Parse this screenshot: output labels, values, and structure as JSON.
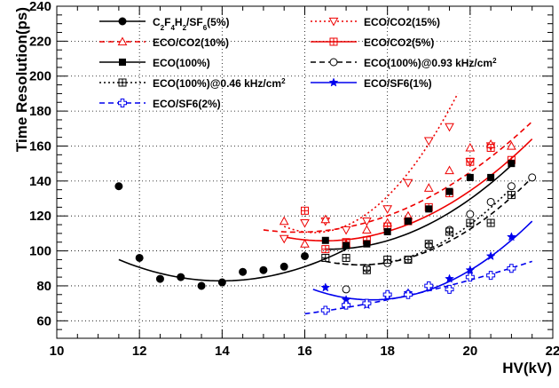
{
  "chart_data": {
    "type": "scatter",
    "xlabel": "HV(kV)",
    "ylabel": "Time Resolution(ps)",
    "xlim": [
      10,
      22
    ],
    "ylim": [
      50,
      240
    ],
    "x_ticks": [
      10,
      12,
      14,
      16,
      18,
      20,
      22
    ],
    "y_ticks": [
      60,
      80,
      100,
      120,
      140,
      160,
      180,
      200,
      220,
      240
    ],
    "grid": true,
    "legend_placement": "top",
    "legend": [
      {
        "series": 0,
        "label_html": "C<tspan baseline-shift=\"sub\" font-size=\"8\">2</tspan>F<tspan baseline-shift=\"sub\" font-size=\"8\">4</tspan>H<tspan baseline-shift=\"sub\" font-size=\"8\">2</tspan>/SF<tspan baseline-shift=\"sub\" font-size=\"8\">6</tspan>(5%)",
        "label_text": "C2F4H2/SF6(5%)"
      },
      {
        "series": 1,
        "label_text": "ECO/CO2(15%)"
      },
      {
        "series": 2,
        "label_text": "ECO/CO2(10%)"
      },
      {
        "series": 3,
        "label_text": "ECO/CO2(5%)"
      },
      {
        "series": 4,
        "label_text": "ECO(100%)"
      },
      {
        "series": 5,
        "label_html": "ECO(100%)@0.93 kHz/cm<tspan baseline-shift=\"super\" font-size=\"8\">2</tspan>",
        "label_text": "ECO(100%)@0.93 kHz/cm2"
      },
      {
        "series": 6,
        "label_html": "ECO(100%)@0.46 kHz/cm<tspan baseline-shift=\"super\" font-size=\"8\">2</tspan>",
        "label_text": "ECO(100%)@0.46 kHz/cm2"
      },
      {
        "series": 7,
        "label_text": "ECO/SF6(1%)"
      },
      {
        "series": 8,
        "label_text": "ECO/SF6(2%)"
      }
    ],
    "series": [
      {
        "name": "C2F4H2/SF6(5%)",
        "color": "#000000",
        "marker": "filled-circle",
        "line": "solid",
        "x": [
          11.5,
          12.0,
          12.5,
          13.0,
          13.5,
          14.0,
          14.5,
          15.0,
          15.5,
          16.0
        ],
        "y": [
          137,
          96,
          84,
          85,
          80,
          82,
          88,
          89,
          91,
          97
        ],
        "fit_x": [
          11.5,
          13.7,
          17.0
        ],
        "fit_y": [
          95,
          83,
          101
        ]
      },
      {
        "name": "ECO/CO2(15%)",
        "color": "#ee0000",
        "marker": "open-triangle-down",
        "line": "dotted",
        "x": [
          15.5,
          16.0,
          16.5,
          17.0,
          17.5,
          18.0,
          18.5,
          19.0,
          19.5,
          20.0,
          20.5
        ],
        "y": [
          107,
          116,
          117,
          112,
          117,
          124,
          139,
          163,
          171,
          151,
          160
        ],
        "fit_x": [
          15.5,
          16.5,
          19.7
        ],
        "fit_y": [
          114,
          111,
          190
        ]
      },
      {
        "name": "ECO/CO2(10%)",
        "color": "#ee0000",
        "marker": "open-triangle-up",
        "line": "dashed",
        "x": [
          15.5,
          16.0,
          16.5,
          17.0,
          17.5,
          18.0,
          18.5,
          19.0,
          19.5,
          20.0,
          20.5,
          21.0
        ],
        "y": [
          117,
          104,
          118,
          104,
          112,
          116,
          120,
          136,
          146,
          159,
          161,
          160
        ],
        "fit_x": [
          15.0,
          16.2,
          21.5
        ],
        "fit_y": [
          112,
          111,
          174
        ]
      },
      {
        "name": "ECO/CO2(5%)",
        "color": "#ee0000",
        "marker": "open-square-plus",
        "line": "solid",
        "x": [
          16.0,
          16.5,
          17.0,
          17.5,
          18.0,
          18.5,
          19.0,
          19.5,
          20.0,
          20.5,
          21.0
        ],
        "y": [
          123,
          101,
          105,
          106,
          114,
          117,
          125,
          133,
          151,
          159,
          152
        ],
        "fit_x": [
          15.5,
          16.8,
          21.5
        ],
        "fit_y": [
          108,
          106,
          164
        ]
      },
      {
        "name": "ECO(100%)",
        "color": "#000000",
        "marker": "filled-square",
        "line": "solid",
        "x": [
          16.5,
          17.0,
          17.5,
          18.0,
          18.5,
          19.0,
          19.5,
          20.0,
          20.5,
          21.0
        ],
        "y": [
          106,
          103,
          104,
          111,
          117,
          124,
          134,
          142,
          142,
          150
        ],
        "fit_x": [
          16.5,
          16.7,
          21.0
        ],
        "fit_y": [
          101,
          101,
          149
        ]
      },
      {
        "name": "ECO(100%)@0.93 kHz/cm2",
        "color": "#000000",
        "marker": "open-circle",
        "line": "dashed",
        "x": [
          17.0,
          17.5,
          18.0,
          18.5,
          19.0,
          19.5,
          20.0,
          20.5,
          21.0,
          21.5
        ],
        "y": [
          78,
          90,
          93,
          95,
          103,
          112,
          121,
          128,
          137,
          142
        ],
        "fit_x": [
          16.5,
          17.3,
          21.5
        ],
        "fit_y": [
          94,
          92,
          142
        ]
      },
      {
        "name": "ECO(100%)@0.46 kHz/cm2",
        "color": "#000000",
        "marker": "open-square-plus",
        "line": "dotted",
        "x": [
          16.5,
          17.0,
          17.5,
          18.0,
          18.5,
          19.0,
          19.5,
          20.0,
          20.5,
          21.0
        ],
        "y": [
          96,
          96,
          89,
          95,
          95,
          104,
          111,
          116,
          116,
          132
        ],
        "fit_x": [
          16.8,
          17.3,
          21.0
        ],
        "fit_y": [
          93,
          92,
          136
        ]
      },
      {
        "name": "ECO/SF6(1%)",
        "color": "#0000ee",
        "marker": "filled-star",
        "line": "solid",
        "x": [
          16.5,
          17.0,
          17.5,
          18.0,
          18.5,
          19.0,
          19.5,
          20.0,
          20.5,
          21.0
        ],
        "y": [
          79,
          72,
          69,
          75,
          76,
          79,
          84,
          89,
          97,
          108
        ],
        "fit_x": [
          16.2,
          17.7,
          21.5
        ],
        "fit_y": [
          78,
          72,
          117
        ]
      },
      {
        "name": "ECO/SF6(2%)",
        "color": "#0000ee",
        "marker": "open-cross",
        "line": "dashed",
        "x": [
          16.5,
          17.0,
          17.5,
          18.0,
          18.5,
          19.0,
          19.5,
          20.0,
          20.5,
          21.0
        ],
        "y": [
          66,
          69,
          70,
          75,
          75,
          80,
          78,
          85,
          86,
          90
        ],
        "fit_x": [
          16.0,
          18.0,
          21.5
        ],
        "fit_y": [
          64,
          72,
          94
        ]
      }
    ]
  }
}
